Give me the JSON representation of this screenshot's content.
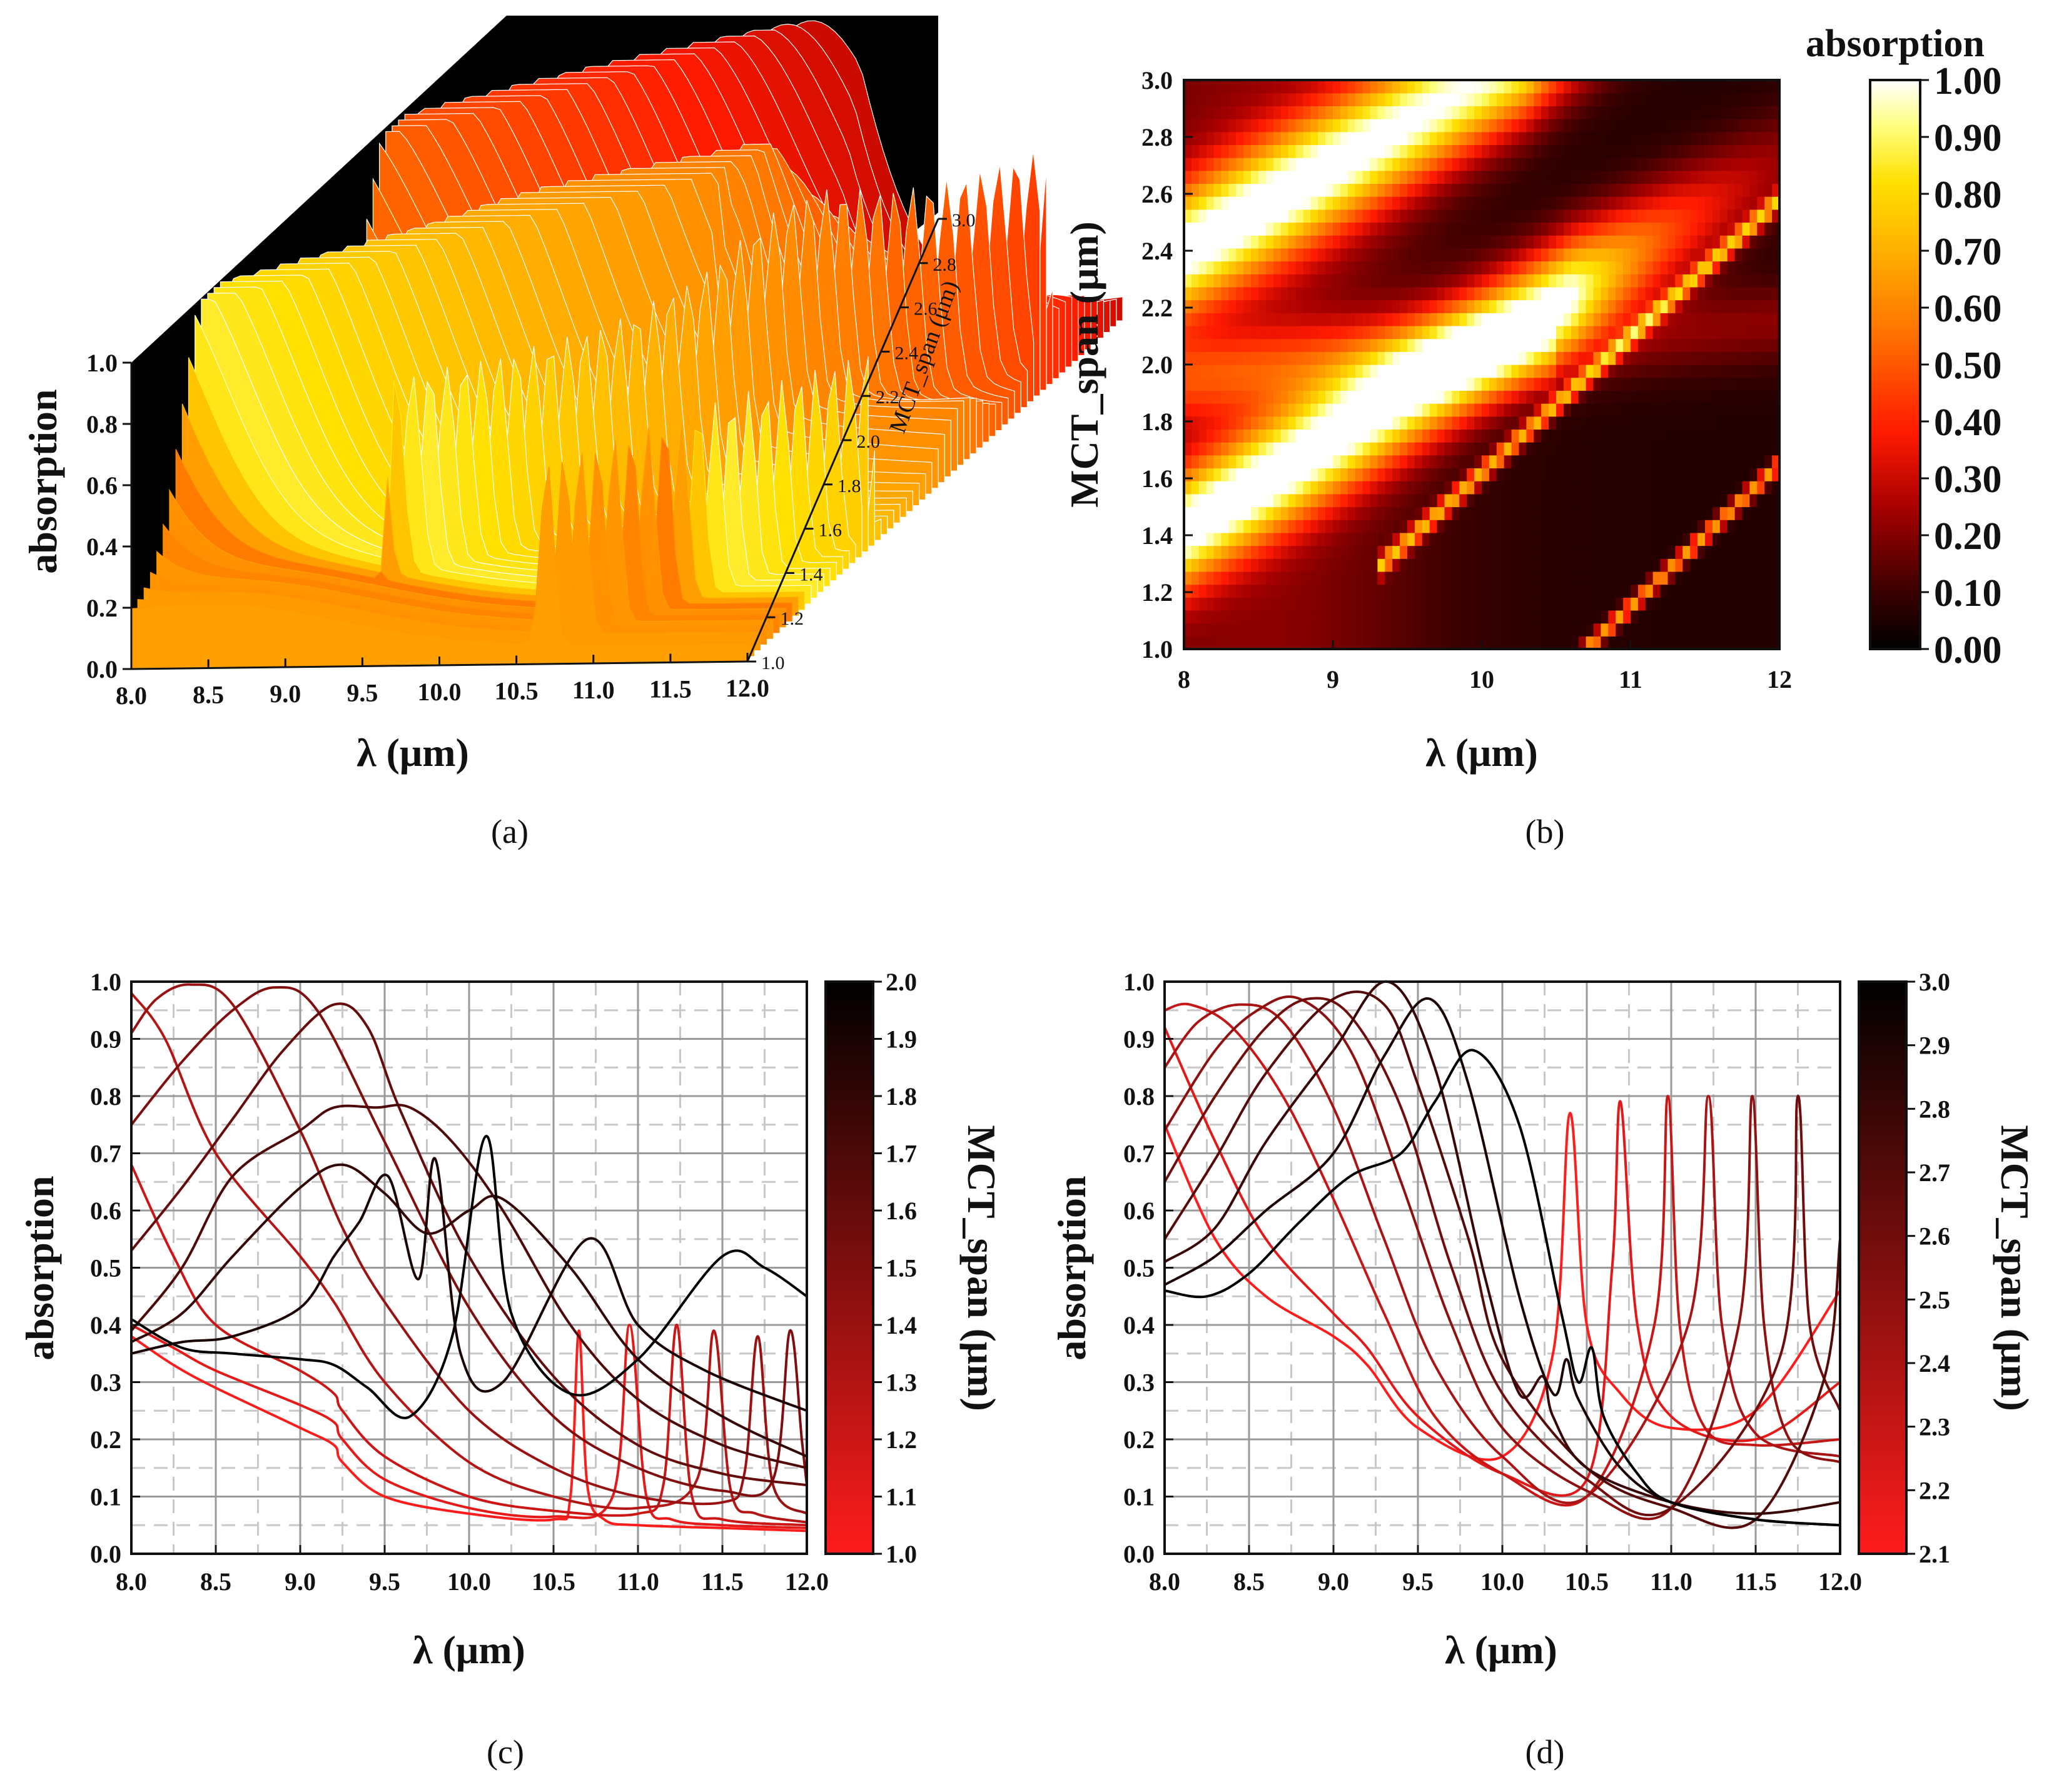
{
  "chart_data": [
    {
      "panel": "(a)",
      "type": "area",
      "title": "",
      "xlabel": "λ (μm)",
      "ylabel": "absorption",
      "zlabel": "MCT_span (μm)",
      "xticks": [
        "8.0",
        "8.5",
        "9.0",
        "9.5",
        "10.0",
        "10.5",
        "11.0",
        "11.5",
        "12.0"
      ],
      "yticks": [
        "0.0",
        "0.2",
        "0.4",
        "0.6",
        "0.8",
        "1.0"
      ],
      "zticks": [
        "1.0",
        "1.2",
        "1.4",
        "1.6",
        "1.8",
        "2.0",
        "2.2",
        "2.4",
        "2.6",
        "2.8",
        "3.0"
      ],
      "xlim": [
        8,
        12
      ],
      "ylim": [
        0,
        1
      ],
      "zlim": [
        1,
        3
      ],
      "colormap": "red-temperature",
      "colors": {
        "low": "#000000",
        "mid": "#ff2a00",
        "high": "#ffffee"
      }
    },
    {
      "panel": "(b)",
      "type": "heatmap",
      "xlabel": "λ (μm)",
      "ylabel": "MCT_span (μm)",
      "xticks": [
        "8",
        "9",
        "10",
        "11",
        "12"
      ],
      "yticks": [
        "1.0",
        "1.2",
        "1.4",
        "1.6",
        "1.8",
        "2.0",
        "2.2",
        "2.4",
        "2.6",
        "2.8",
        "3.0"
      ],
      "xlim": [
        8,
        12
      ],
      "ylim": [
        1,
        3
      ],
      "colorbar": {
        "title": "absorption",
        "ticks": [
          "0.00",
          "0.10",
          "0.20",
          "0.30",
          "0.40",
          "0.50",
          "0.60",
          "0.70",
          "0.80",
          "0.90",
          "1.00"
        ],
        "range": [
          0,
          1
        ]
      }
    },
    {
      "panel": "(c)",
      "type": "line",
      "xlabel": "λ (μm)",
      "ylabel": "absorption",
      "xticks": [
        "8.0",
        "8.5",
        "9.0",
        "9.5",
        "10.0",
        "10.5",
        "11.0",
        "11.5",
        "12.0"
      ],
      "yticks": [
        "0.0",
        "0.1",
        "0.2",
        "0.3",
        "0.4",
        "0.5",
        "0.6",
        "0.7",
        "0.8",
        "0.9",
        "1.0"
      ],
      "xlim": [
        8,
        12
      ],
      "ylim": [
        0,
        1
      ],
      "colorbar": {
        "title": "MCT_span (μm)",
        "ticks": [
          "1.0",
          "1.1",
          "1.2",
          "1.3",
          "1.4",
          "1.5",
          "1.6",
          "1.7",
          "1.8",
          "1.9",
          "2.0"
        ],
        "range": [
          1.0,
          2.0
        ]
      },
      "series": [
        {
          "name": "1.0",
          "x": [
            8,
            8.25,
            8.5,
            9.0,
            9.2,
            9.25,
            9.5,
            10.0,
            10.5,
            10.6,
            10.65,
            10.7,
            10.8,
            11.0,
            11.5,
            12
          ],
          "y": [
            0.38,
            0.33,
            0.29,
            0.22,
            0.19,
            0.16,
            0.1,
            0.07,
            0.06,
            0.1,
            0.39,
            0.12,
            0.06,
            0.05,
            0.045,
            0.04
          ]
        },
        {
          "name": "1.1",
          "x": [
            8,
            8.25,
            8.5,
            9.0,
            9.2,
            9.25,
            9.5,
            10.0,
            10.5,
            10.85,
            10.95,
            11.05,
            11.2,
            11.5,
            12
          ],
          "y": [
            0.4,
            0.36,
            0.32,
            0.26,
            0.23,
            0.2,
            0.13,
            0.08,
            0.065,
            0.1,
            0.4,
            0.1,
            0.06,
            0.05,
            0.045
          ]
        },
        {
          "name": "1.2",
          "x": [
            8,
            8.25,
            8.5,
            9.0,
            9.2,
            9.25,
            9.5,
            10.0,
            10.5,
            11.0,
            11.15,
            11.23,
            11.32,
            11.5,
            12
          ],
          "y": [
            0.68,
            0.52,
            0.4,
            0.32,
            0.28,
            0.25,
            0.17,
            0.1,
            0.075,
            0.07,
            0.12,
            0.4,
            0.1,
            0.06,
            0.05
          ]
        },
        {
          "name": "1.3",
          "x": [
            8,
            8.2,
            8.5,
            9.0,
            9.2,
            9.5,
            10.0,
            10.5,
            11.0,
            11.35,
            11.45,
            11.55,
            11.7,
            12
          ],
          "y": [
            0.98,
            0.9,
            0.7,
            0.52,
            0.44,
            0.3,
            0.16,
            0.1,
            0.08,
            0.13,
            0.39,
            0.11,
            0.07,
            0.055
          ]
        },
        {
          "name": "1.4",
          "x": [
            8,
            8.15,
            8.35,
            8.6,
            9.0,
            9.25,
            9.5,
            10.0,
            10.5,
            11.0,
            11.5,
            11.63,
            11.71,
            11.8,
            12
          ],
          "y": [
            0.91,
            0.97,
            0.995,
            0.96,
            0.74,
            0.57,
            0.44,
            0.25,
            0.15,
            0.1,
            0.09,
            0.14,
            0.38,
            0.12,
            0.07
          ]
        },
        {
          "name": "1.5",
          "x": [
            8,
            8.3,
            8.6,
            8.85,
            9.1,
            9.5,
            10.0,
            10.5,
            11.0,
            11.5,
            11.8,
            11.9,
            11.97,
            12
          ],
          "y": [
            0.75,
            0.86,
            0.95,
            0.99,
            0.95,
            0.72,
            0.43,
            0.24,
            0.15,
            0.11,
            0.13,
            0.39,
            0.2,
            0.12
          ]
        },
        {
          "name": "1.6",
          "x": [
            8,
            8.3,
            8.6,
            8.9,
            9.2,
            9.4,
            9.6,
            10.0,
            10.5,
            11.0,
            11.5,
            12
          ],
          "y": [
            0.53,
            0.64,
            0.76,
            0.88,
            0.96,
            0.92,
            0.77,
            0.52,
            0.31,
            0.19,
            0.14,
            0.12
          ]
        },
        {
          "name": "1.7",
          "x": [
            8,
            8.3,
            8.6,
            9.0,
            9.2,
            9.45,
            9.65,
            9.9,
            10.2,
            10.6,
            11.0,
            11.5,
            12
          ],
          "y": [
            0.39,
            0.5,
            0.66,
            0.74,
            0.78,
            0.78,
            0.78,
            0.72,
            0.6,
            0.4,
            0.27,
            0.19,
            0.15
          ]
        },
        {
          "name": "1.8",
          "x": [
            8,
            8.3,
            8.6,
            9.0,
            9.25,
            9.5,
            9.75,
            10.0,
            10.2,
            10.6,
            11.0,
            11.5,
            12
          ],
          "y": [
            0.37,
            0.42,
            0.52,
            0.64,
            0.68,
            0.63,
            0.56,
            0.6,
            0.62,
            0.5,
            0.34,
            0.24,
            0.17
          ]
        },
        {
          "name": "1.9",
          "x": [
            8,
            8.3,
            8.6,
            9.0,
            9.2,
            9.35,
            9.52,
            9.7,
            9.8,
            9.95,
            10.2,
            10.7,
            11.0,
            11.4,
            12
          ],
          "y": [
            0.35,
            0.37,
            0.38,
            0.43,
            0.52,
            0.58,
            0.66,
            0.48,
            0.69,
            0.35,
            0.3,
            0.55,
            0.4,
            0.32,
            0.25
          ]
        },
        {
          "name": "2.0",
          "x": [
            8,
            8.3,
            8.6,
            9.0,
            9.2,
            9.4,
            9.65,
            9.9,
            10.1,
            10.25,
            10.6,
            11.0,
            11.5,
            11.75,
            12
          ],
          "y": [
            0.41,
            0.36,
            0.35,
            0.34,
            0.33,
            0.29,
            0.24,
            0.38,
            0.73,
            0.42,
            0.28,
            0.34,
            0.52,
            0.5,
            0.45
          ]
        }
      ]
    },
    {
      "panel": "(d)",
      "type": "line",
      "xlabel": "λ (μm)",
      "ylabel": "absorption",
      "xticks": [
        "8.0",
        "8.5",
        "9.0",
        "9.5",
        "10.0",
        "10.5",
        "11.0",
        "11.5",
        "12.0"
      ],
      "yticks": [
        "0.0",
        "0.1",
        "0.2",
        "0.3",
        "0.4",
        "0.5",
        "0.6",
        "0.7",
        "0.8",
        "0.9",
        "1.0"
      ],
      "xlim": [
        8,
        12
      ],
      "ylim": [
        0,
        1
      ],
      "colorbar": {
        "title": "MCT_span (μm)",
        "ticks": [
          "2.1",
          "2.2",
          "2.3",
          "2.4",
          "2.5",
          "2.6",
          "2.7",
          "2.8",
          "2.9",
          "3.0"
        ],
        "range": [
          2.1,
          3.0
        ]
      },
      "series": [
        {
          "name": "2.1",
          "x": [
            8,
            8.3,
            8.6,
            9.0,
            9.2,
            9.5,
            10.0,
            10.3,
            10.4,
            10.5,
            10.7,
            11.0,
            11.5,
            12
          ],
          "y": [
            0.75,
            0.55,
            0.45,
            0.38,
            0.33,
            0.22,
            0.17,
            0.35,
            0.77,
            0.4,
            0.28,
            0.22,
            0.25,
            0.46
          ]
        },
        {
          "name": "2.2",
          "x": [
            8,
            8.3,
            8.6,
            9.0,
            9.2,
            9.5,
            10.0,
            10.5,
            10.65,
            10.7,
            10.8,
            11.0,
            11.5,
            12
          ],
          "y": [
            0.92,
            0.72,
            0.55,
            0.42,
            0.36,
            0.24,
            0.14,
            0.13,
            0.5,
            0.79,
            0.4,
            0.24,
            0.2,
            0.3
          ]
        },
        {
          "name": "2.3",
          "x": [
            8,
            8.15,
            8.4,
            8.7,
            9.0,
            9.3,
            9.6,
            10.0,
            10.5,
            10.9,
            10.98,
            11.05,
            11.2,
            11.5,
            12
          ],
          "y": [
            0.95,
            0.96,
            0.92,
            0.8,
            0.62,
            0.42,
            0.24,
            0.14,
            0.1,
            0.4,
            0.8,
            0.4,
            0.22,
            0.19,
            0.2
          ]
        },
        {
          "name": "2.4",
          "x": [
            8,
            8.2,
            8.45,
            8.7,
            9.0,
            9.3,
            9.6,
            10.0,
            10.5,
            11.1,
            11.22,
            11.3,
            11.5,
            12
          ],
          "y": [
            0.85,
            0.93,
            0.96,
            0.93,
            0.78,
            0.55,
            0.33,
            0.17,
            0.1,
            0.4,
            0.8,
            0.4,
            0.21,
            0.17
          ]
        },
        {
          "name": "2.5",
          "x": [
            8,
            8.3,
            8.55,
            8.8,
            9.1,
            9.4,
            9.7,
            10.0,
            10.5,
            11.0,
            11.4,
            11.48,
            11.55,
            11.7,
            12
          ],
          "y": [
            0.74,
            0.88,
            0.95,
            0.97,
            0.88,
            0.65,
            0.4,
            0.22,
            0.11,
            0.08,
            0.4,
            0.8,
            0.4,
            0.2,
            0.16
          ]
        },
        {
          "name": "2.6",
          "x": [
            8,
            8.3,
            8.6,
            8.85,
            9.1,
            9.4,
            9.7,
            10.0,
            10.5,
            11.0,
            11.65,
            11.75,
            11.82,
            12
          ],
          "y": [
            0.65,
            0.8,
            0.92,
            0.97,
            0.94,
            0.78,
            0.5,
            0.28,
            0.13,
            0.08,
            0.35,
            0.8,
            0.4,
            0.25
          ]
        },
        {
          "name": "2.7",
          "x": [
            8,
            8.3,
            8.6,
            9.0,
            9.3,
            9.5,
            9.8,
            10.0,
            10.5,
            11.0,
            11.5,
            11.9,
            12
          ],
          "y": [
            0.55,
            0.69,
            0.84,
            0.97,
            0.96,
            0.82,
            0.55,
            0.34,
            0.15,
            0.08,
            0.06,
            0.3,
            0.55
          ]
        },
        {
          "name": "2.8",
          "x": [
            8,
            8.3,
            8.6,
            9.0,
            9.32,
            9.6,
            9.9,
            10.1,
            10.24,
            10.3,
            10.5,
            11.0,
            11.5,
            12
          ],
          "y": [
            0.51,
            0.57,
            0.72,
            0.88,
            1.0,
            0.85,
            0.48,
            0.28,
            0.31,
            0.24,
            0.15,
            0.09,
            0.07,
            0.09
          ]
        },
        {
          "name": "2.9",
          "x": [
            8,
            8.3,
            8.6,
            9.0,
            9.3,
            9.57,
            9.8,
            10.1,
            10.3,
            10.38,
            10.45,
            10.7,
            11.0,
            11.5,
            12
          ],
          "y": [
            0.47,
            0.52,
            0.6,
            0.7,
            0.87,
            0.97,
            0.82,
            0.45,
            0.28,
            0.34,
            0.27,
            0.15,
            0.09,
            0.06,
            0.05
          ]
        },
        {
          "name": "3.0",
          "x": [
            8,
            8.25,
            8.5,
            8.8,
            9.1,
            9.4,
            9.6,
            9.83,
            10.1,
            10.35,
            10.45,
            10.53,
            10.6,
            10.8,
            11.0,
            11.5,
            12
          ],
          "y": [
            0.46,
            0.45,
            0.49,
            0.58,
            0.66,
            0.7,
            0.79,
            0.88,
            0.75,
            0.42,
            0.3,
            0.36,
            0.24,
            0.14,
            0.09,
            0.06,
            0.05
          ]
        }
      ]
    }
  ]
}
